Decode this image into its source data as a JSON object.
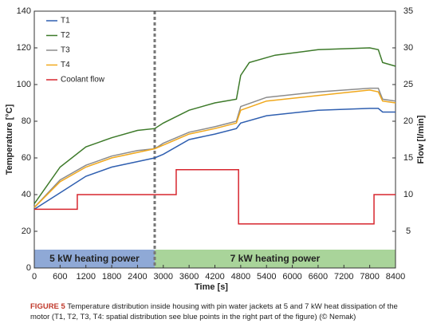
{
  "chart_data": {
    "type": "line",
    "xlabel": "Time [s]",
    "ylabel": "Temperature [°C]",
    "y2label": "Flow [l/min]",
    "xlim": [
      0,
      8400
    ],
    "xticks": [
      0,
      600,
      1200,
      1800,
      2400,
      3000,
      3600,
      4200,
      4800,
      5400,
      6000,
      6600,
      7200,
      7800,
      8400
    ],
    "ylim": [
      0,
      140
    ],
    "yticks": [
      0,
      20,
      40,
      60,
      80,
      100,
      120,
      140
    ],
    "y2lim": [
      0,
      35
    ],
    "y2ticks": [
      5,
      10,
      15,
      20,
      25,
      30,
      35
    ],
    "grid": false,
    "legend": "upper left",
    "series": [
      {
        "name": "T1",
        "color": "#2f5fb0",
        "x": [
          0,
          600,
          1200,
          1800,
          2400,
          2800,
          3000,
          3600,
          4200,
          4700,
          4800,
          5400,
          6600,
          7800,
          8000,
          8100,
          8400
        ],
        "values": [
          32,
          41,
          50,
          55,
          58,
          60,
          62,
          70,
          73,
          76,
          79,
          83,
          86,
          87,
          87,
          85,
          85
        ]
      },
      {
        "name": "T2",
        "color": "#3d7a2a",
        "x": [
          0,
          600,
          1200,
          1800,
          2400,
          2800,
          3000,
          3600,
          4200,
          4700,
          4800,
          5000,
          5600,
          6600,
          7800,
          8000,
          8100,
          8400
        ],
        "values": [
          35,
          55,
          66,
          71,
          75,
          76,
          79,
          86,
          90,
          92,
          105,
          112,
          116,
          119,
          120,
          119,
          112,
          110
        ]
      },
      {
        "name": "T3",
        "color": "#8c8c8c",
        "x": [
          0,
          600,
          1200,
          1800,
          2400,
          2800,
          3000,
          3600,
          4200,
          4700,
          4800,
          5400,
          6600,
          7800,
          8000,
          8100,
          8400
        ],
        "values": [
          33,
          48,
          56,
          61,
          64,
          65,
          68,
          74,
          77,
          80,
          88,
          93,
          96,
          98,
          98,
          92,
          91
        ]
      },
      {
        "name": "T4",
        "color": "#f0a81c",
        "x": [
          0,
          600,
          1200,
          1800,
          2400,
          2800,
          3000,
          3600,
          4200,
          4700,
          4800,
          5400,
          6600,
          7800,
          8000,
          8100,
          8400
        ],
        "values": [
          33,
          47,
          55,
          60,
          63,
          65,
          67,
          73,
          76,
          79,
          86,
          91,
          94,
          97,
          96,
          91,
          90
        ]
      },
      {
        "name": "Coolant flow",
        "color": "#d7262e",
        "axis": "y2",
        "x": [
          0,
          1000,
          1000,
          3300,
          3300,
          4750,
          4750,
          7900,
          7900,
          8400
        ],
        "values": [
          8,
          8,
          10,
          10,
          13.4,
          13.4,
          6,
          6,
          10,
          10
        ]
      }
    ],
    "phases": [
      {
        "label": "5 kW heating power",
        "start": 0,
        "end": 2800,
        "color": "#8fa9d6"
      },
      {
        "label": "7 kW heating power",
        "start": 2800,
        "end": 8400,
        "color": "#a9d49a"
      }
    ],
    "caption_label": "FIGURE 5",
    "caption": "Temperature distribution inside housing with pin water jackets at 5 and 7 kW heat dissipation of the motor (T1, T2, T3, T4: spatial distribution see blue points in the right part of the figure) (© Nemak)"
  }
}
